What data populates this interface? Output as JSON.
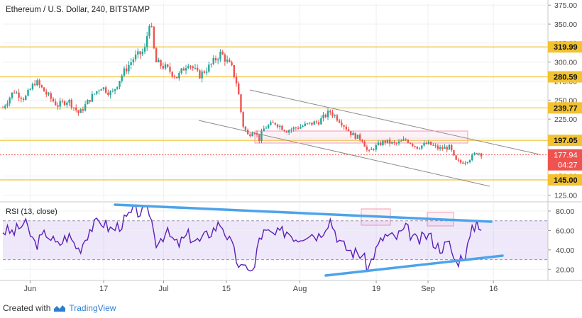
{
  "chart_data": {
    "type": "candlestick",
    "title": "Ethereum / U.S. Dollar, 240, BITSTAMP",
    "price_axis": {
      "ylim": [
        118,
        378
      ],
      "ticks": [
        125,
        150,
        175,
        200,
        225,
        250,
        275,
        300,
        325,
        350,
        375
      ],
      "tick_labels": [
        "125.00",
        "150.00",
        "175.00",
        "200.00",
        "225.00",
        "250.00",
        "275.00",
        "300.00",
        "325.00",
        "350.00",
        "375.00"
      ]
    },
    "time_axis": {
      "labels": [
        "Jun",
        "17",
        "Jul",
        "15",
        "Aug",
        "19",
        "Sep",
        "16"
      ]
    },
    "horizontal_levels": [
      {
        "value": 319.99,
        "label": "319.99"
      },
      {
        "value": 280.59,
        "label": "280.59"
      },
      {
        "value": 239.77,
        "label": "239.77"
      },
      {
        "value": 197.05,
        "label": "197.05"
      },
      {
        "value": 145.0,
        "label": "145.00"
      }
    ],
    "last_price": {
      "value": 177.94,
      "label": "177.94",
      "countdown": "04:27"
    },
    "price_path": [
      [
        0,
        240
      ],
      [
        2,
        262
      ],
      [
        4,
        252
      ],
      [
        6,
        275
      ],
      [
        8,
        258
      ],
      [
        10,
        243
      ],
      [
        12,
        250
      ],
      [
        14,
        232
      ],
      [
        16,
        252
      ],
      [
        18,
        268
      ],
      [
        20,
        258
      ],
      [
        22,
        285
      ],
      [
        24,
        305
      ],
      [
        26,
        315
      ],
      [
        27,
        358
      ],
      [
        28,
        300
      ],
      [
        30,
        292
      ],
      [
        32,
        280
      ],
      [
        34,
        300
      ],
      [
        36,
        282
      ],
      [
        38,
        295
      ],
      [
        40,
        312
      ],
      [
        42,
        292
      ],
      [
        43,
        270
      ],
      [
        44,
        218
      ],
      [
        45,
        203
      ],
      [
        46,
        212
      ],
      [
        47,
        198
      ],
      [
        48,
        214
      ],
      [
        50,
        220
      ],
      [
        52,
        210
      ],
      [
        54,
        214
      ],
      [
        56,
        218
      ],
      [
        58,
        222
      ],
      [
        60,
        235
      ],
      [
        62,
        222
      ],
      [
        64,
        205
      ],
      [
        66,
        198
      ],
      [
        67,
        180
      ],
      [
        68,
        187
      ],
      [
        70,
        196
      ],
      [
        72,
        192
      ],
      [
        74,
        198
      ],
      [
        76,
        188
      ],
      [
        78,
        193
      ],
      [
        80,
        186
      ],
      [
        82,
        188
      ],
      [
        83,
        170
      ],
      [
        84,
        168
      ],
      [
        85,
        170
      ],
      [
        86,
        175
      ],
      [
        87,
        182
      ],
      [
        88,
        178
      ]
    ],
    "rsi": {
      "label": "RSI (13, close)",
      "ylim": [
        10,
        88
      ],
      "ticks": [
        20,
        40,
        60,
        80
      ],
      "tick_labels": [
        "20.00",
        "40.00",
        "60.00",
        "80.00"
      ],
      "overbought": 70,
      "oversold": 30,
      "values": [
        [
          0,
          60
        ],
        [
          2,
          58
        ],
        [
          4,
          68
        ],
        [
          6,
          45
        ],
        [
          8,
          58
        ],
        [
          10,
          44
        ],
        [
          12,
          55
        ],
        [
          14,
          40
        ],
        [
          16,
          62
        ],
        [
          18,
          70
        ],
        [
          20,
          60
        ],
        [
          22,
          68
        ],
        [
          24,
          80
        ],
        [
          26,
          78
        ],
        [
          27,
          80
        ],
        [
          28,
          48
        ],
        [
          30,
          58
        ],
        [
          32,
          45
        ],
        [
          34,
          55
        ],
        [
          36,
          48
        ],
        [
          38,
          58
        ],
        [
          40,
          68
        ],
        [
          42,
          44
        ],
        [
          43,
          28
        ],
        [
          44,
          18
        ],
        [
          45,
          25
        ],
        [
          46,
          15
        ],
        [
          47,
          52
        ],
        [
          48,
          58
        ],
        [
          50,
          55
        ],
        [
          52,
          60
        ],
        [
          54,
          52
        ],
        [
          56,
          58
        ],
        [
          58,
          55
        ],
        [
          60,
          72
        ],
        [
          62,
          46
        ],
        [
          64,
          38
        ],
        [
          66,
          35
        ],
        [
          67,
          20
        ],
        [
          68,
          35
        ],
        [
          70,
          55
        ],
        [
          72,
          52
        ],
        [
          74,
          62
        ],
        [
          76,
          48
        ],
        [
          78,
          56
        ],
        [
          80,
          42
        ],
        [
          82,
          46
        ],
        [
          83,
          26
        ],
        [
          84,
          32
        ],
        [
          85,
          38
        ],
        [
          86,
          58
        ],
        [
          87,
          70
        ],
        [
          88,
          62
        ]
      ]
    }
  },
  "footer": {
    "created_with": "Created with",
    "brand": "TradingView"
  },
  "colors": {
    "up": "#26a69a",
    "down": "#ef5350",
    "level": "#f2c230",
    "rsi_line": "#5b21b6",
    "trend_blue": "#4da3ea",
    "box_pink": "#f19ab3"
  }
}
